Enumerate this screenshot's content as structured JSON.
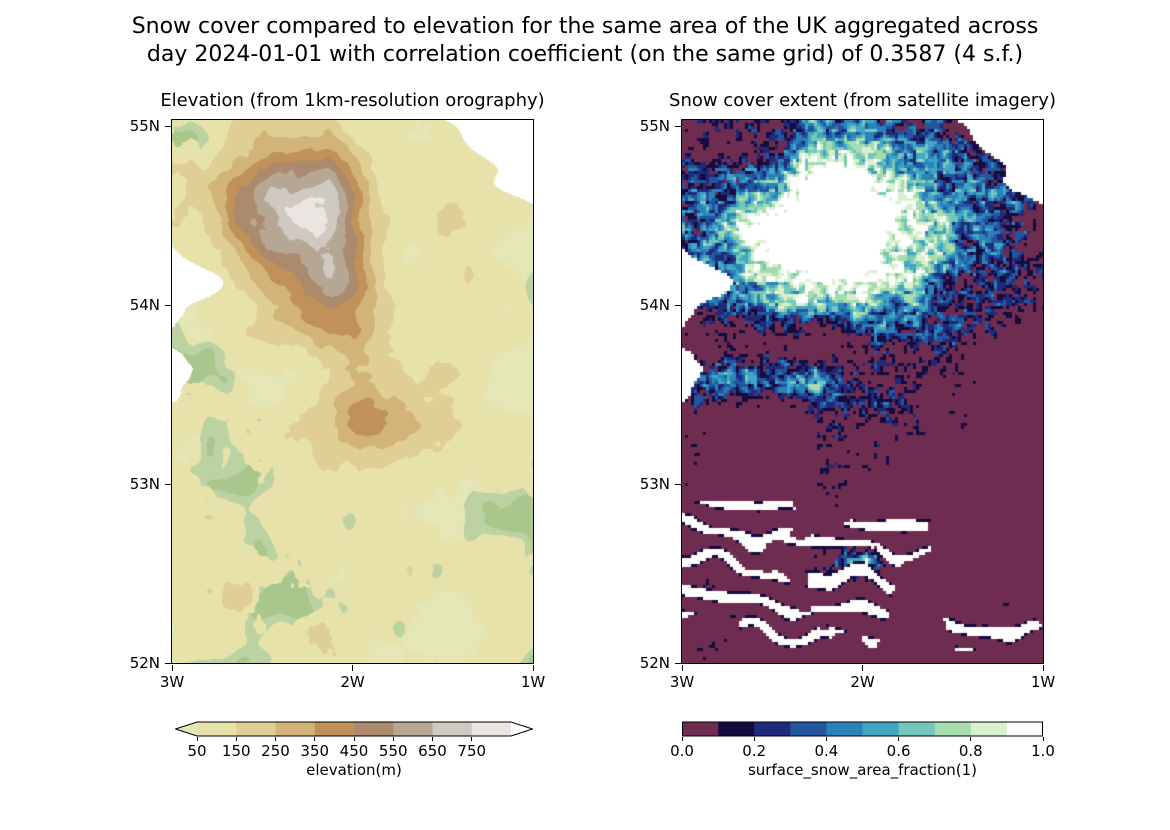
{
  "figure": {
    "title_line1": "Snow cover compared to elevation for the same area of the UK aggregated across",
    "title_line2": "day 2024-01-01 with correlation coefficient (on the same grid) of 0.3587 (4 s.f.)",
    "date": "2024-01-01",
    "correlation_coefficient": "0.3587",
    "background_color": "#ffffff"
  },
  "chart_data": [
    {
      "type": "heatmap",
      "title": "Elevation (from 1km-resolution orography)",
      "x_tick_labels": [
        "3W",
        "2W",
        "1W"
      ],
      "y_tick_labels": [
        "55N",
        "54N",
        "53N",
        "52N"
      ],
      "colorbar": {
        "label": "elevation(m)",
        "tick_labels": [
          "50",
          "150",
          "250",
          "350",
          "450",
          "550",
          "650",
          "750"
        ],
        "thresholds": [
          50,
          150,
          250,
          350,
          450,
          550,
          650,
          750,
          850
        ],
        "segment_colors": [
          "#e7e2aa",
          "#e0cf95",
          "#d3b478",
          "#c09158",
          "#ab8a6d",
          "#b6a795",
          "#cfc9c1",
          "#e9e6e2"
        ],
        "under_color": "#e4e6b6",
        "over_color": "#ffffff",
        "extend": "both"
      },
      "land_green": "#bcd2a2",
      "land_green_dark": "#a9c78c",
      "sea_color": "#ffffff"
    },
    {
      "type": "heatmap",
      "title": "Snow cover extent (from satellite imagery)",
      "x_tick_labels": [
        "3W",
        "2W",
        "1W"
      ],
      "y_tick_labels": [
        "55N",
        "54N",
        "53N",
        "52N"
      ],
      "colorbar": {
        "label": "surface_snow_area_fraction(1)",
        "tick_labels": [
          "0.0",
          "0.2",
          "0.4",
          "0.6",
          "0.8",
          "1.0"
        ],
        "range": [
          0.0,
          1.0
        ],
        "segment_colors": [
          "#6e2c50",
          "#150b3e",
          "#1f2a7a",
          "#2456a0",
          "#2a83b8",
          "#41a6c4",
          "#74c7ba",
          "#a6dcae",
          "#d9f0cf",
          "#ffffff"
        ]
      },
      "no_snow_color": "#6e2c50",
      "sea_color": "#ffffff"
    }
  ]
}
